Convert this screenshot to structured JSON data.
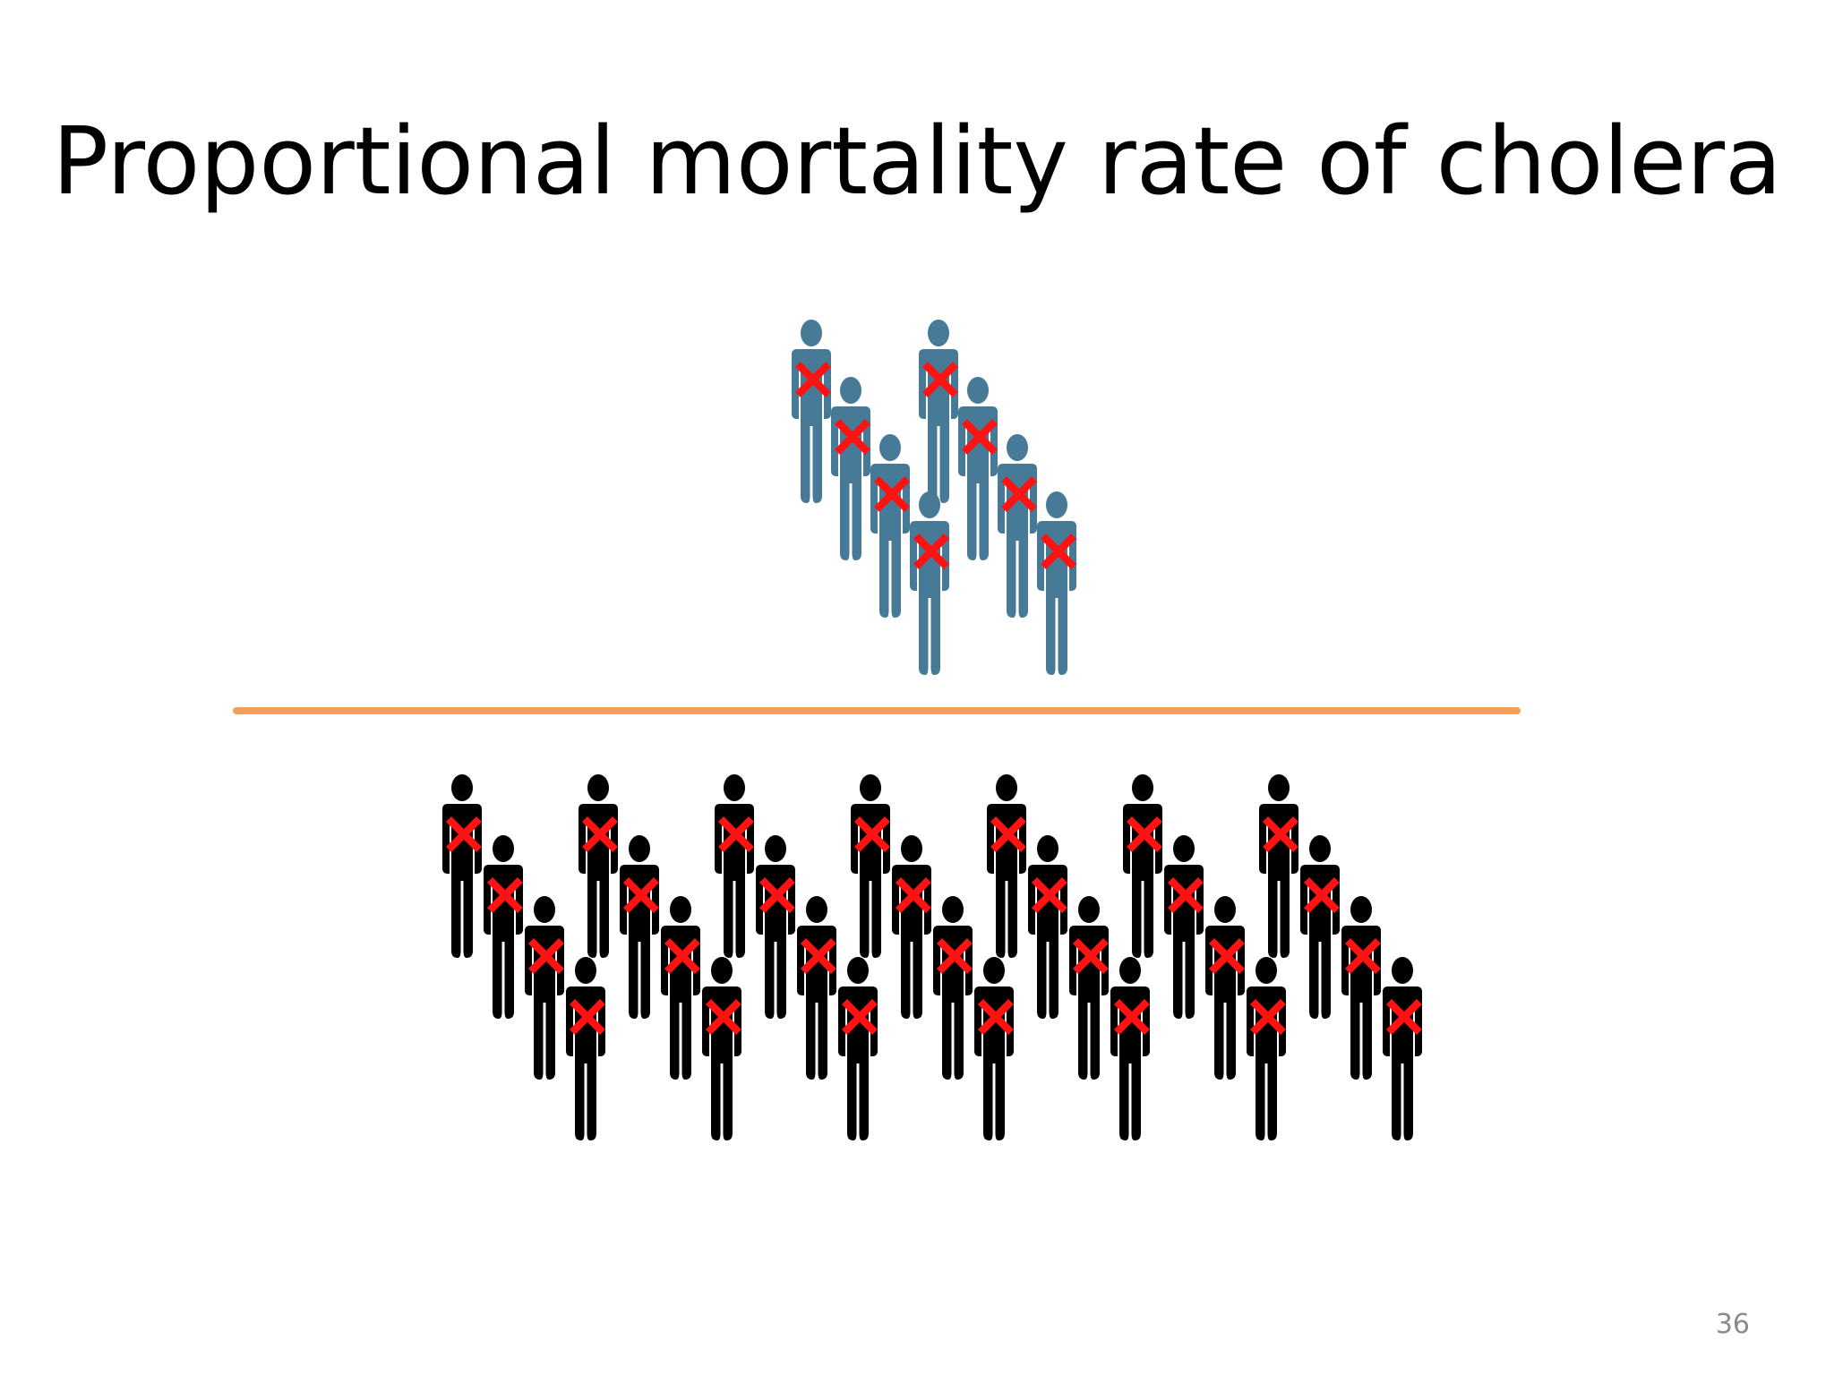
{
  "slide": {
    "title": "Proportional mortality rate of cholera",
    "slide_number": "36"
  },
  "figure": {
    "numerator": {
      "description_count": 8,
      "figure_color": "#477a97",
      "all_marked_deceased": true
    },
    "denominator": {
      "description_count": 28,
      "figure_color": "#000000",
      "all_marked_deceased": true
    },
    "fraction_line_color": "#f0a05a",
    "cross_color": "#ff1212",
    "person_icon": "person-icon",
    "cross_icon": "x-mark-icon"
  }
}
